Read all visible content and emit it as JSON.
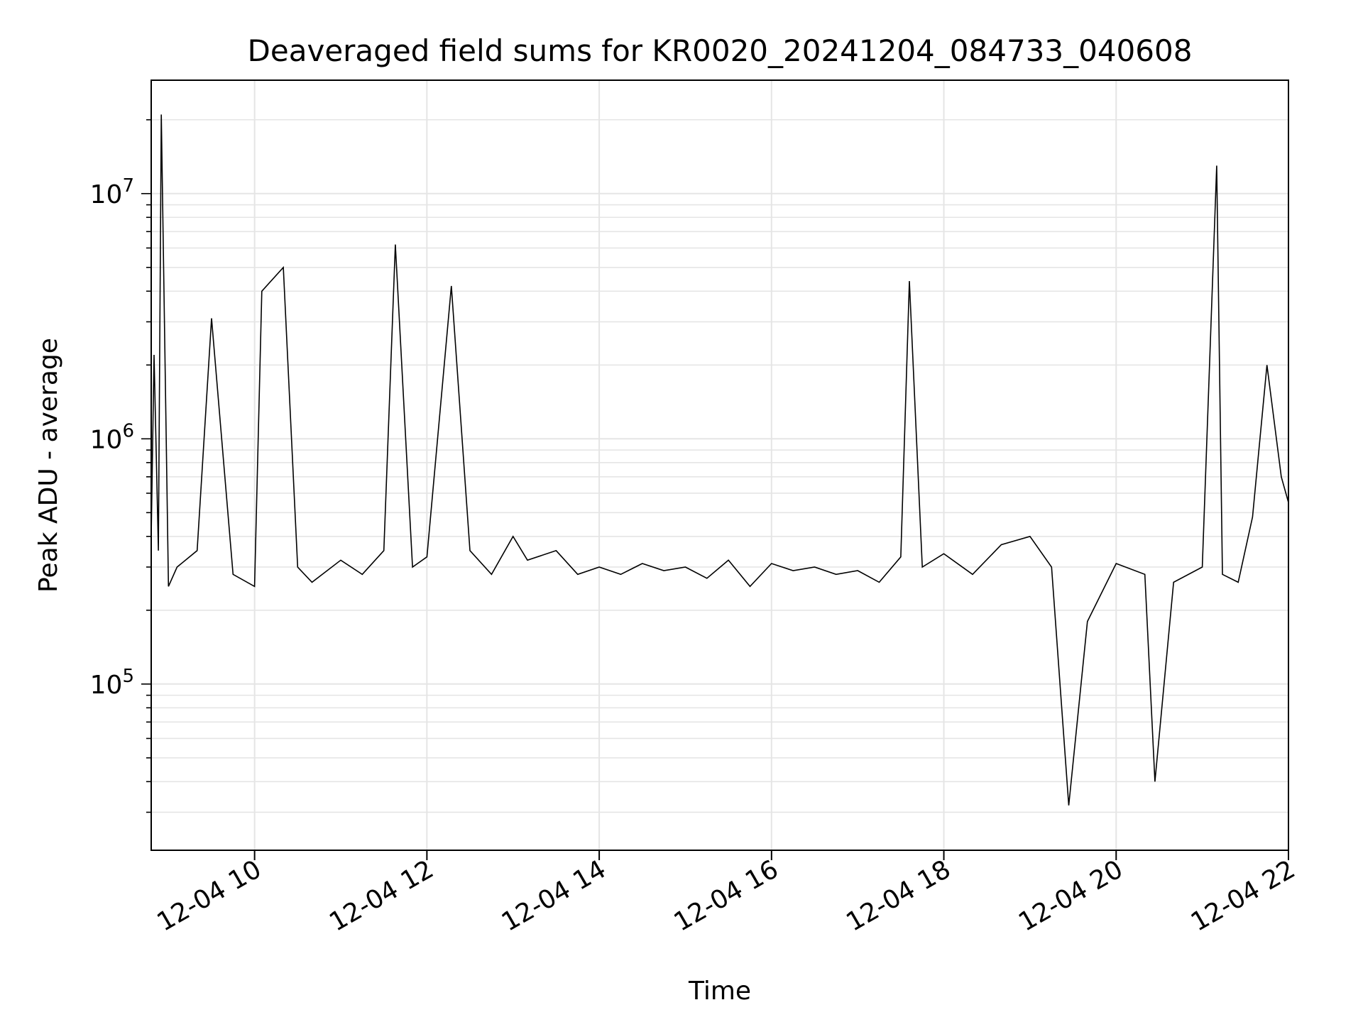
{
  "chart_data": {
    "type": "line",
    "title": "Deaveraged field sums for KR0020_20241204_084733_040608",
    "xlabel": "Time",
    "ylabel": "Peak ADU - average",
    "yscale": "log",
    "grid": true,
    "legend": "none",
    "line_color": "#000000",
    "grid_color": "#e5e5e5",
    "xlim": [
      "2024-12-04 08:48",
      "2024-12-04 22:00"
    ],
    "ylim": [
      21000,
      29000000
    ],
    "x_ticks": [
      {
        "at": "2024-12-04 10:00",
        "label": "12-04 10"
      },
      {
        "at": "2024-12-04 12:00",
        "label": "12-04 12"
      },
      {
        "at": "2024-12-04 14:00",
        "label": "12-04 14"
      },
      {
        "at": "2024-12-04 16:00",
        "label": "12-04 16"
      },
      {
        "at": "2024-12-04 18:00",
        "label": "12-04 18"
      },
      {
        "at": "2024-12-04 20:00",
        "label": "12-04 20"
      },
      {
        "at": "2024-12-04 22:00",
        "label": "12-04 22"
      }
    ],
    "y_ticks": [
      {
        "value": 100000,
        "base": "10",
        "exp": "5"
      },
      {
        "value": 1000000,
        "base": "10",
        "exp": "6"
      },
      {
        "value": 10000000,
        "base": "10",
        "exp": "7"
      }
    ],
    "series": [
      {
        "x": [
          "2024-12-04 08:48",
          "2024-12-04 08:50",
          "2024-12-04 08:53",
          "2024-12-04 08:55",
          "2024-12-04 09:00",
          "2024-12-04 09:06",
          "2024-12-04 09:20",
          "2024-12-04 09:30",
          "2024-12-04 09:45",
          "2024-12-04 10:00",
          "2024-12-04 10:05",
          "2024-12-04 10:20",
          "2024-12-04 10:30",
          "2024-12-04 10:40",
          "2024-12-04 11:00",
          "2024-12-04 11:15",
          "2024-12-04 11:30",
          "2024-12-04 11:38",
          "2024-12-04 11:50",
          "2024-12-04 12:00",
          "2024-12-04 12:17",
          "2024-12-04 12:30",
          "2024-12-04 12:45",
          "2024-12-04 13:00",
          "2024-12-04 13:10",
          "2024-12-04 13:30",
          "2024-12-04 13:45",
          "2024-12-04 14:00",
          "2024-12-04 14:15",
          "2024-12-04 14:30",
          "2024-12-04 14:45",
          "2024-12-04 15:00",
          "2024-12-04 15:15",
          "2024-12-04 15:30",
          "2024-12-04 15:45",
          "2024-12-04 16:00",
          "2024-12-04 16:15",
          "2024-12-04 16:30",
          "2024-12-04 16:45",
          "2024-12-04 17:00",
          "2024-12-04 17:15",
          "2024-12-04 17:30",
          "2024-12-04 17:36",
          "2024-12-04 17:45",
          "2024-12-04 18:00",
          "2024-12-04 18:20",
          "2024-12-04 18:40",
          "2024-12-04 19:00",
          "2024-12-04 19:15",
          "2024-12-04 19:27",
          "2024-12-04 19:40",
          "2024-12-04 20:00",
          "2024-12-04 20:20",
          "2024-12-04 20:27",
          "2024-12-04 20:40",
          "2024-12-04 21:00",
          "2024-12-04 21:10",
          "2024-12-04 21:14",
          "2024-12-04 21:25",
          "2024-12-04 21:35",
          "2024-12-04 21:45",
          "2024-12-04 21:55",
          "2024-12-04 22:00"
        ],
        "y": [
          400000,
          2200000,
          350000,
          21000000,
          250000,
          300000,
          350000,
          3100000,
          280000,
          250000,
          4000000,
          5000000,
          300000,
          260000,
          320000,
          280000,
          350000,
          6200000,
          300000,
          330000,
          4200000,
          350000,
          280000,
          400000,
          320000,
          350000,
          280000,
          300000,
          280000,
          310000,
          290000,
          300000,
          270000,
          320000,
          250000,
          310000,
          290000,
          300000,
          280000,
          290000,
          260000,
          330000,
          4400000,
          300000,
          340000,
          280000,
          370000,
          400000,
          300000,
          32000,
          180000,
          310000,
          280000,
          40000,
          260000,
          300000,
          13000000,
          280000,
          260000,
          480000,
          2000000,
          700000,
          550000
        ]
      }
    ]
  }
}
